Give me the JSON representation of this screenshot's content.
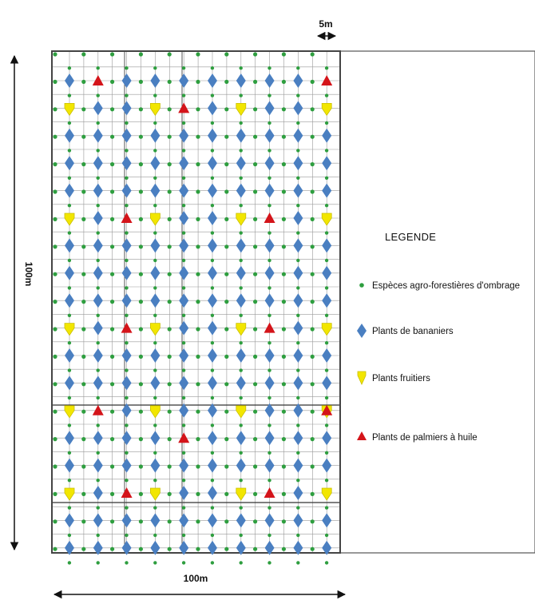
{
  "dimensions": {
    "top_spacing_label": "5m",
    "left_label": "100m",
    "bottom_label": "100m"
  },
  "legend": {
    "title": "LEGENDE",
    "items": [
      {
        "key": "shade",
        "label": "Espèces agro-forestières  d'ombrage",
        "color": "#2e9e3f",
        "icon": "small-dot-icon"
      },
      {
        "key": "banana",
        "label": "Plants de bananiers",
        "color": "#4a7fc1",
        "icon": "diamond-icon"
      },
      {
        "key": "fruit",
        "label": "Plants fruitiers",
        "color": "#f2e600",
        "icon": "drop-pin-icon"
      },
      {
        "key": "palm",
        "label": "Plants de palmiers à huile",
        "color": "#d4141a",
        "icon": "triangle-icon"
      }
    ]
  },
  "plot": {
    "rows": 18,
    "cols": 10,
    "banana_columns": [
      0,
      1,
      2,
      3,
      4,
      5,
      6,
      7,
      8,
      9
    ],
    "fruit_columns": [
      0,
      3,
      6,
      9
    ],
    "fruit_rows": [
      1,
      5,
      9,
      12,
      15
    ],
    "palm_positions": [
      [
        0,
        1
      ],
      [
        0,
        9
      ],
      [
        1,
        4
      ],
      [
        5,
        2
      ],
      [
        5,
        7
      ],
      [
        9,
        2
      ],
      [
        9,
        7
      ],
      [
        12,
        1
      ],
      [
        12,
        9
      ],
      [
        13,
        4
      ],
      [
        15,
        2
      ],
      [
        15,
        7
      ]
    ]
  }
}
